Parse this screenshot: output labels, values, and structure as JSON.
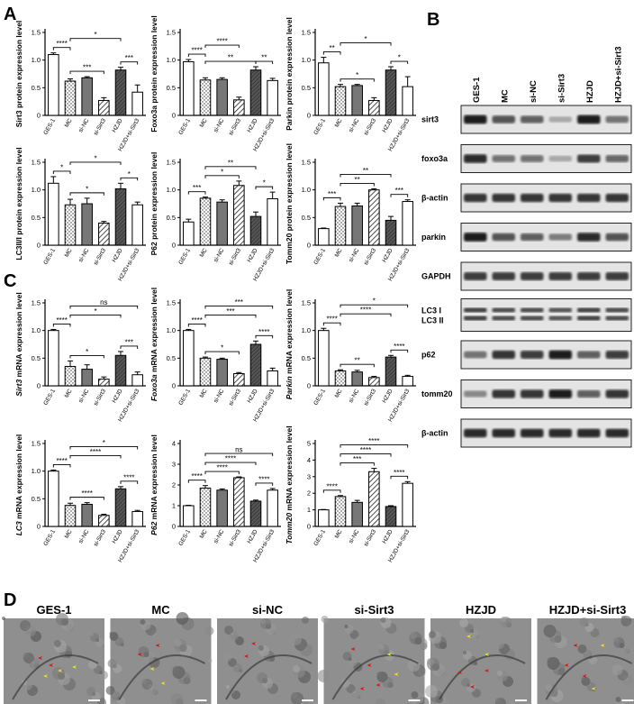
{
  "panel_letters": {
    "a": "A",
    "b": "B",
    "c": "C",
    "d": "D"
  },
  "groups": [
    "GES-1",
    "MC",
    "si-NC",
    "si-Sirt3",
    "HZJD",
    "HZJD+si-Sirt3"
  ],
  "bar_styles": [
    "white",
    "dots",
    "gray",
    "hatch",
    "dark",
    "white"
  ],
  "charts": [
    {
      "id": "sirt3-protein",
      "ylabel": "Sirt3 protein expression level",
      "italic_prefix": "",
      "ylim": [
        0,
        1.5
      ],
      "ticks": [
        0,
        0.5,
        1.0,
        1.5
      ],
      "values": [
        1.1,
        0.62,
        0.68,
        0.27,
        0.82,
        0.42
      ],
      "errors": [
        0.03,
        0.04,
        0.02,
        0.05,
        0.05,
        0.13
      ],
      "brackets": [
        {
          "a": 0,
          "b": 1,
          "level": 0,
          "label": "****"
        },
        {
          "a": 1,
          "b": 3,
          "level": 0,
          "label": "***"
        },
        {
          "a": 4,
          "b": 5,
          "level": 0,
          "label": "***"
        },
        {
          "a": 1,
          "b": 4,
          "level": 1,
          "label": "*"
        }
      ]
    },
    {
      "id": "foxo3a-protein",
      "ylabel": "Foxo3a protein expression level",
      "italic_prefix": "",
      "ylim": [
        0,
        1.5
      ],
      "ticks": [
        0,
        0.5,
        1.0,
        1.5
      ],
      "values": [
        0.97,
        0.64,
        0.65,
        0.28,
        0.82,
        0.63
      ],
      "errors": [
        0.04,
        0.04,
        0.03,
        0.05,
        0.06,
        0.04
      ],
      "brackets": [
        {
          "a": 0,
          "b": 1,
          "level": 0,
          "label": "****"
        },
        {
          "a": 1,
          "b": 4,
          "level": 0,
          "label": "**"
        },
        {
          "a": 4,
          "b": 5,
          "level": 0,
          "label": "**"
        },
        {
          "a": 1,
          "b": 3,
          "level": 1,
          "label": "****"
        }
      ]
    },
    {
      "id": "parkin-protein",
      "ylabel": "Parkin protein expression level",
      "italic_prefix": "",
      "ylim": [
        0,
        1.5
      ],
      "ticks": [
        0,
        0.5,
        1.0,
        1.5
      ],
      "values": [
        0.95,
        0.52,
        0.54,
        0.27,
        0.82,
        0.52
      ],
      "errors": [
        0.1,
        0.04,
        0.02,
        0.05,
        0.06,
        0.18
      ],
      "brackets": [
        {
          "a": 0,
          "b": 1,
          "level": 0,
          "label": "**"
        },
        {
          "a": 1,
          "b": 3,
          "level": 0,
          "label": "*"
        },
        {
          "a": 4,
          "b": 5,
          "level": 0,
          "label": "*"
        },
        {
          "a": 1,
          "b": 4,
          "level": 1,
          "label": "*"
        }
      ]
    },
    {
      "id": "lc3-protein",
      "ylabel": "LC3II/I protein expression level",
      "italic_prefix": "",
      "ylim": [
        0,
        1.5
      ],
      "ticks": [
        0,
        0.5,
        1.0,
        1.5
      ],
      "values": [
        1.12,
        0.73,
        0.75,
        0.4,
        1.02,
        0.73
      ],
      "errors": [
        0.12,
        0.1,
        0.1,
        0.03,
        0.1,
        0.05
      ],
      "brackets": [
        {
          "a": 0,
          "b": 1,
          "level": 0,
          "label": "*"
        },
        {
          "a": 1,
          "b": 3,
          "level": 0,
          "label": "*"
        },
        {
          "a": 4,
          "b": 5,
          "level": 0,
          "label": "*"
        },
        {
          "a": 1,
          "b": 4,
          "level": 1,
          "label": "*"
        }
      ]
    },
    {
      "id": "p62-protein",
      "ylabel": "P62 protein expression level",
      "italic_prefix": "",
      "ylim": [
        0,
        1.5
      ],
      "ticks": [
        0,
        0.5,
        1.0,
        1.5
      ],
      "values": [
        0.42,
        0.85,
        0.78,
        1.08,
        0.52,
        0.84
      ],
      "errors": [
        0.05,
        0.02,
        0.04,
        0.08,
        0.08,
        0.12
      ],
      "brackets": [
        {
          "a": 0,
          "b": 1,
          "level": 0,
          "label": "***"
        },
        {
          "a": 1,
          "b": 3,
          "level": 0,
          "label": "*"
        },
        {
          "a": 4,
          "b": 5,
          "level": 0,
          "label": "*"
        },
        {
          "a": 1,
          "b": 4,
          "level": 1,
          "label": "**"
        }
      ]
    },
    {
      "id": "tomm20-protein",
      "ylabel": "Tomm20 protein expression level",
      "italic_prefix": "",
      "ylim": [
        0,
        1.5
      ],
      "ticks": [
        0,
        0.5,
        1.0,
        1.5
      ],
      "values": [
        0.3,
        0.7,
        0.71,
        1.0,
        0.45,
        0.79
      ],
      "errors": [
        0.01,
        0.06,
        0.05,
        0.02,
        0.07,
        0.03
      ],
      "brackets": [
        {
          "a": 0,
          "b": 1,
          "level": 0,
          "label": "***"
        },
        {
          "a": 1,
          "b": 3,
          "level": 0,
          "label": "**"
        },
        {
          "a": 4,
          "b": 5,
          "level": 0,
          "label": "***"
        },
        {
          "a": 1,
          "b": 4,
          "level": 1,
          "label": "**"
        }
      ]
    },
    {
      "id": "sirt3-mrna",
      "ylabel": " mRNA expression level",
      "italic_prefix": "Sirt3",
      "ylim": [
        0,
        1.5
      ],
      "ticks": [
        0,
        0.5,
        1.0,
        1.5
      ],
      "values": [
        1.0,
        0.35,
        0.3,
        0.12,
        0.55,
        0.2
      ],
      "errors": [
        0.02,
        0.1,
        0.08,
        0.04,
        0.07,
        0.05
      ],
      "brackets": [
        {
          "a": 0,
          "b": 1,
          "level": 0,
          "label": "****"
        },
        {
          "a": 1,
          "b": 3,
          "level": 0,
          "label": "*"
        },
        {
          "a": 4,
          "b": 5,
          "level": 0,
          "label": "***"
        },
        {
          "a": 1,
          "b": 4,
          "level": 1,
          "label": "*"
        },
        {
          "a": 1,
          "b": 5,
          "level": 2,
          "label": "ns"
        }
      ]
    },
    {
      "id": "foxo3a-mrna",
      "ylabel": " mRNA expression level",
      "italic_prefix": "Foxo3a",
      "ylim": [
        0,
        1.5
      ],
      "ticks": [
        0,
        0.5,
        1.0,
        1.5
      ],
      "values": [
        1.0,
        0.5,
        0.48,
        0.22,
        0.75,
        0.27
      ],
      "errors": [
        0.02,
        0.02,
        0.02,
        0.02,
        0.06,
        0.05
      ],
      "brackets": [
        {
          "a": 0,
          "b": 1,
          "level": 0,
          "label": "****"
        },
        {
          "a": 1,
          "b": 3,
          "level": 0,
          "label": "*"
        },
        {
          "a": 4,
          "b": 5,
          "level": 0,
          "label": "****"
        },
        {
          "a": 1,
          "b": 4,
          "level": 1,
          "label": "***"
        },
        {
          "a": 1,
          "b": 5,
          "level": 2,
          "label": "***"
        }
      ]
    },
    {
      "id": "parkin-mrna",
      "ylabel": " mRNA expression level",
      "italic_prefix": "Parkin",
      "ylim": [
        0,
        1.5
      ],
      "ticks": [
        0,
        0.5,
        1.0,
        1.5
      ],
      "values": [
        1.0,
        0.27,
        0.25,
        0.15,
        0.52,
        0.17
      ],
      "errors": [
        0.04,
        0.02,
        0.03,
        0.02,
        0.03,
        0.02
      ],
      "brackets": [
        {
          "a": 0,
          "b": 1,
          "level": 0,
          "label": "****"
        },
        {
          "a": 1,
          "b": 3,
          "level": 0,
          "label": "**"
        },
        {
          "a": 4,
          "b": 5,
          "level": 0,
          "label": "****"
        },
        {
          "a": 1,
          "b": 4,
          "level": 1,
          "label": "****"
        },
        {
          "a": 1,
          "b": 5,
          "level": 2,
          "label": "*"
        }
      ]
    },
    {
      "id": "lc3-mrna",
      "ylabel": " mRNA expression level",
      "italic_prefix": "LC3",
      "ylim": [
        0,
        1.5
      ],
      "ticks": [
        0,
        0.5,
        1.0,
        1.5
      ],
      "values": [
        1.0,
        0.38,
        0.4,
        0.2,
        0.68,
        0.27
      ],
      "errors": [
        0.02,
        0.04,
        0.03,
        0.02,
        0.04,
        0.02
      ],
      "brackets": [
        {
          "a": 0,
          "b": 1,
          "level": 0,
          "label": "****"
        },
        {
          "a": 1,
          "b": 3,
          "level": 0,
          "label": "****"
        },
        {
          "a": 4,
          "b": 5,
          "level": 0,
          "label": "****"
        },
        {
          "a": 1,
          "b": 4,
          "level": 1,
          "label": "****"
        },
        {
          "a": 1,
          "b": 5,
          "level": 2,
          "label": "*"
        }
      ]
    },
    {
      "id": "p62-mrna",
      "ylabel": " mRNA expression level",
      "italic_prefix": "P62",
      "ylim": [
        0,
        4
      ],
      "ticks": [
        0,
        1,
        2,
        3,
        4
      ],
      "values": [
        1.0,
        1.85,
        1.75,
        2.35,
        1.22,
        1.75
      ],
      "errors": [
        0.02,
        0.12,
        0.06,
        0.04,
        0.05,
        0.08
      ],
      "brackets": [
        {
          "a": 0,
          "b": 1,
          "level": 0,
          "label": "****"
        },
        {
          "a": 1,
          "b": 3,
          "level": 0,
          "label": "****"
        },
        {
          "a": 4,
          "b": 5,
          "level": 0,
          "label": "****"
        },
        {
          "a": 1,
          "b": 4,
          "level": 1,
          "label": "****"
        },
        {
          "a": 1,
          "b": 5,
          "level": 2,
          "label": "ns"
        }
      ]
    },
    {
      "id": "tomm20-mrna",
      "ylabel": " mRNA expression level",
      "italic_prefix": "Tomm20",
      "ylim": [
        0,
        5
      ],
      "ticks": [
        0,
        1,
        2,
        3,
        4,
        5
      ],
      "values": [
        1.0,
        1.8,
        1.45,
        3.3,
        1.2,
        2.6
      ],
      "errors": [
        0.02,
        0.06,
        0.12,
        0.2,
        0.05,
        0.1
      ],
      "brackets": [
        {
          "a": 0,
          "b": 1,
          "level": 0,
          "label": "****"
        },
        {
          "a": 1,
          "b": 3,
          "level": 0,
          "label": "***"
        },
        {
          "a": 4,
          "b": 5,
          "level": 0,
          "label": "****"
        },
        {
          "a": 1,
          "b": 4,
          "level": 1,
          "label": "****"
        },
        {
          "a": 1,
          "b": 5,
          "level": 2,
          "label": "****"
        }
      ]
    }
  ],
  "blot": {
    "lanes": [
      "GES-1",
      "MC",
      "si-NC",
      "si-Sirt3",
      "HZJD",
      "HZJD+si-Sirt3"
    ],
    "rows": [
      {
        "label": "sirt3",
        "intensity": [
          0.95,
          0.7,
          0.65,
          0.3,
          0.95,
          0.55
        ]
      },
      {
        "label": "foxo3a",
        "intensity": [
          0.9,
          0.55,
          0.55,
          0.3,
          0.8,
          0.6
        ]
      },
      {
        "label": "β-actin",
        "intensity": [
          0.85,
          0.85,
          0.85,
          0.85,
          0.85,
          0.85
        ]
      },
      {
        "label": "parkin",
        "intensity": [
          0.95,
          0.7,
          0.65,
          0.5,
          0.9,
          0.7
        ]
      },
      {
        "label": "GAPDH",
        "intensity": [
          0.8,
          0.8,
          0.8,
          0.8,
          0.8,
          0.8
        ]
      },
      {
        "label": "LC3 I",
        "label2": "LC3 II",
        "intensity": [
          0.8,
          0.75,
          0.75,
          0.7,
          0.8,
          0.75
        ]
      },
      {
        "label": "p62",
        "intensity": [
          0.55,
          0.85,
          0.8,
          0.95,
          0.65,
          0.8
        ]
      },
      {
        "label": "tomm20",
        "intensity": [
          0.45,
          0.85,
          0.85,
          0.95,
          0.65,
          0.85
        ]
      },
      {
        "label": "β-actin",
        "intensity": [
          0.9,
          0.9,
          0.9,
          0.9,
          0.9,
          0.9
        ]
      }
    ]
  },
  "em_panels": [
    "GES-1",
    "MC",
    "si-NC",
    "si-Sirt3",
    "HZJD",
    "HZJD+si-Sirt3"
  ]
}
